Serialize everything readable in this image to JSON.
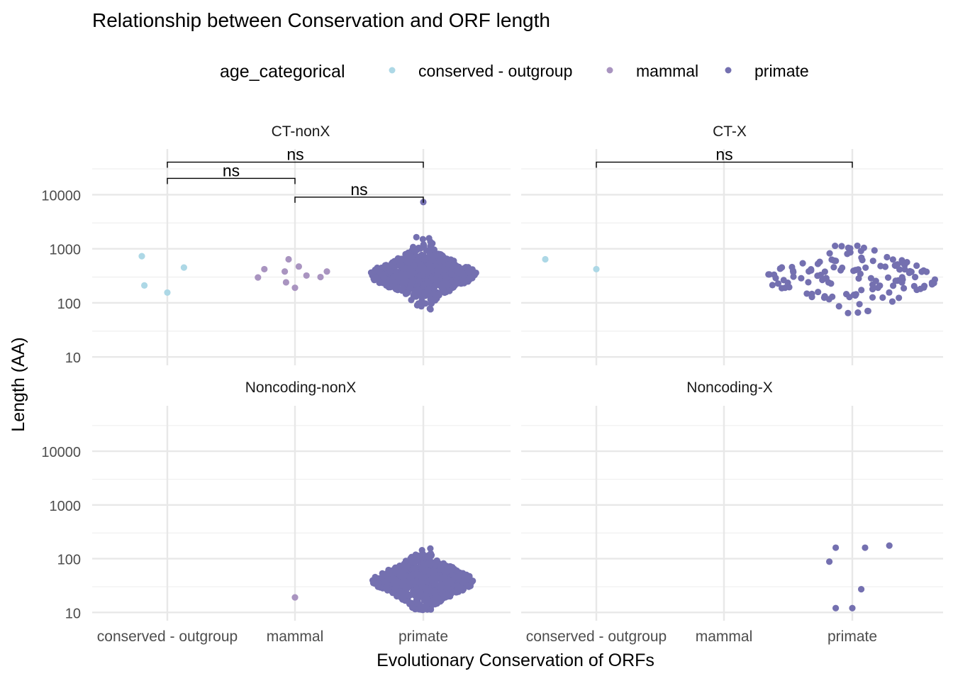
{
  "chart_data": {
    "type": "scatter",
    "title": "Relationship between Conservation and ORF length",
    "xlabel": "Evolutionary Conservation of ORFs",
    "ylabel": "Length (AA)",
    "scale": "log10",
    "ylim": [
      7,
      70000
    ],
    "categories": [
      "conserved - outgroup",
      "mammal",
      "primate"
    ],
    "y_ticks": [
      10,
      100,
      1000,
      10000
    ],
    "y_tick_labels": [
      "10",
      "100",
      "1000",
      "10000"
    ],
    "legend": {
      "title": "age_categorical",
      "position": "top",
      "entries": [
        {
          "label": "conserved - outgroup",
          "color": "#ADD8E6"
        },
        {
          "label": "mammal",
          "color": "#A994C0"
        },
        {
          "label": "primate",
          "color": "#7470B0"
        }
      ]
    },
    "grid": true,
    "panels": [
      {
        "name": "CT-nonX",
        "points": {
          "conserved - outgroup": [
            {
              "x": -0.2,
              "y": 730
            },
            {
              "x": -0.18,
              "y": 210
            },
            {
              "x": 0.0,
              "y": 155
            },
            {
              "x": 0.13,
              "y": 450
            }
          ],
          "mammal": [
            {
              "x": -0.29,
              "y": 295
            },
            {
              "x": -0.24,
              "y": 420
            },
            {
              "x": -0.08,
              "y": 380
            },
            {
              "x": -0.07,
              "y": 240
            },
            {
              "x": -0.05,
              "y": 640
            },
            {
              "x": 0.0,
              "y": 190
            },
            {
              "x": 0.03,
              "y": 470
            },
            {
              "x": 0.09,
              "y": 320
            },
            {
              "x": 0.2,
              "y": 300
            },
            {
              "x": 0.25,
              "y": 380
            }
          ],
          "primate": {
            "n": 700,
            "median": 330,
            "log_spread": 0.22,
            "min": 70,
            "max": 1650,
            "width": 0.42,
            "outliers": [
              7300
            ]
          }
        },
        "brackets": [
          {
            "from": "conserved - outgroup",
            "to": "primate",
            "label": "ns",
            "y": 40000
          },
          {
            "from": "conserved - outgroup",
            "to": "mammal",
            "label": "ns",
            "y": 20000
          },
          {
            "from": "mammal",
            "to": "primate",
            "label": "ns",
            "y": 9000
          }
        ]
      },
      {
        "name": "CT-X",
        "points": {
          "conserved - outgroup": [
            {
              "x": -0.4,
              "y": 640
            },
            {
              "x": 0.0,
              "y": 420
            }
          ],
          "mammal": [],
          "primate": {
            "n": 130,
            "median": 280,
            "log_spread": 0.3,
            "min": 60,
            "max": 1150,
            "width": 0.68,
            "outliers": []
          }
        },
        "brackets": [
          {
            "from": "conserved - outgroup",
            "to": "primate",
            "label": "ns",
            "y": 40000
          }
        ]
      },
      {
        "name": "Noncoding-nonX",
        "points": {
          "conserved - outgroup": [],
          "mammal": [
            {
              "x": 0.0,
              "y": 19
            }
          ],
          "primate": {
            "n": 700,
            "median": 38,
            "log_spread": 0.22,
            "min": 11,
            "max": 180,
            "width": 0.4,
            "outliers": []
          }
        },
        "brackets": []
      },
      {
        "name": "Noncoding-X",
        "points": {
          "conserved - outgroup": [],
          "mammal": [],
          "primate": [
            {
              "x": -0.18,
              "y": 88
            },
            {
              "x": -0.13,
              "y": 160
            },
            {
              "x": -0.13,
              "y": 12
            },
            {
              "x": 0.0,
              "y": 12
            },
            {
              "x": 0.07,
              "y": 27
            },
            {
              "x": 0.1,
              "y": 160
            },
            {
              "x": 0.29,
              "y": 175
            }
          ]
        },
        "brackets": []
      }
    ]
  }
}
